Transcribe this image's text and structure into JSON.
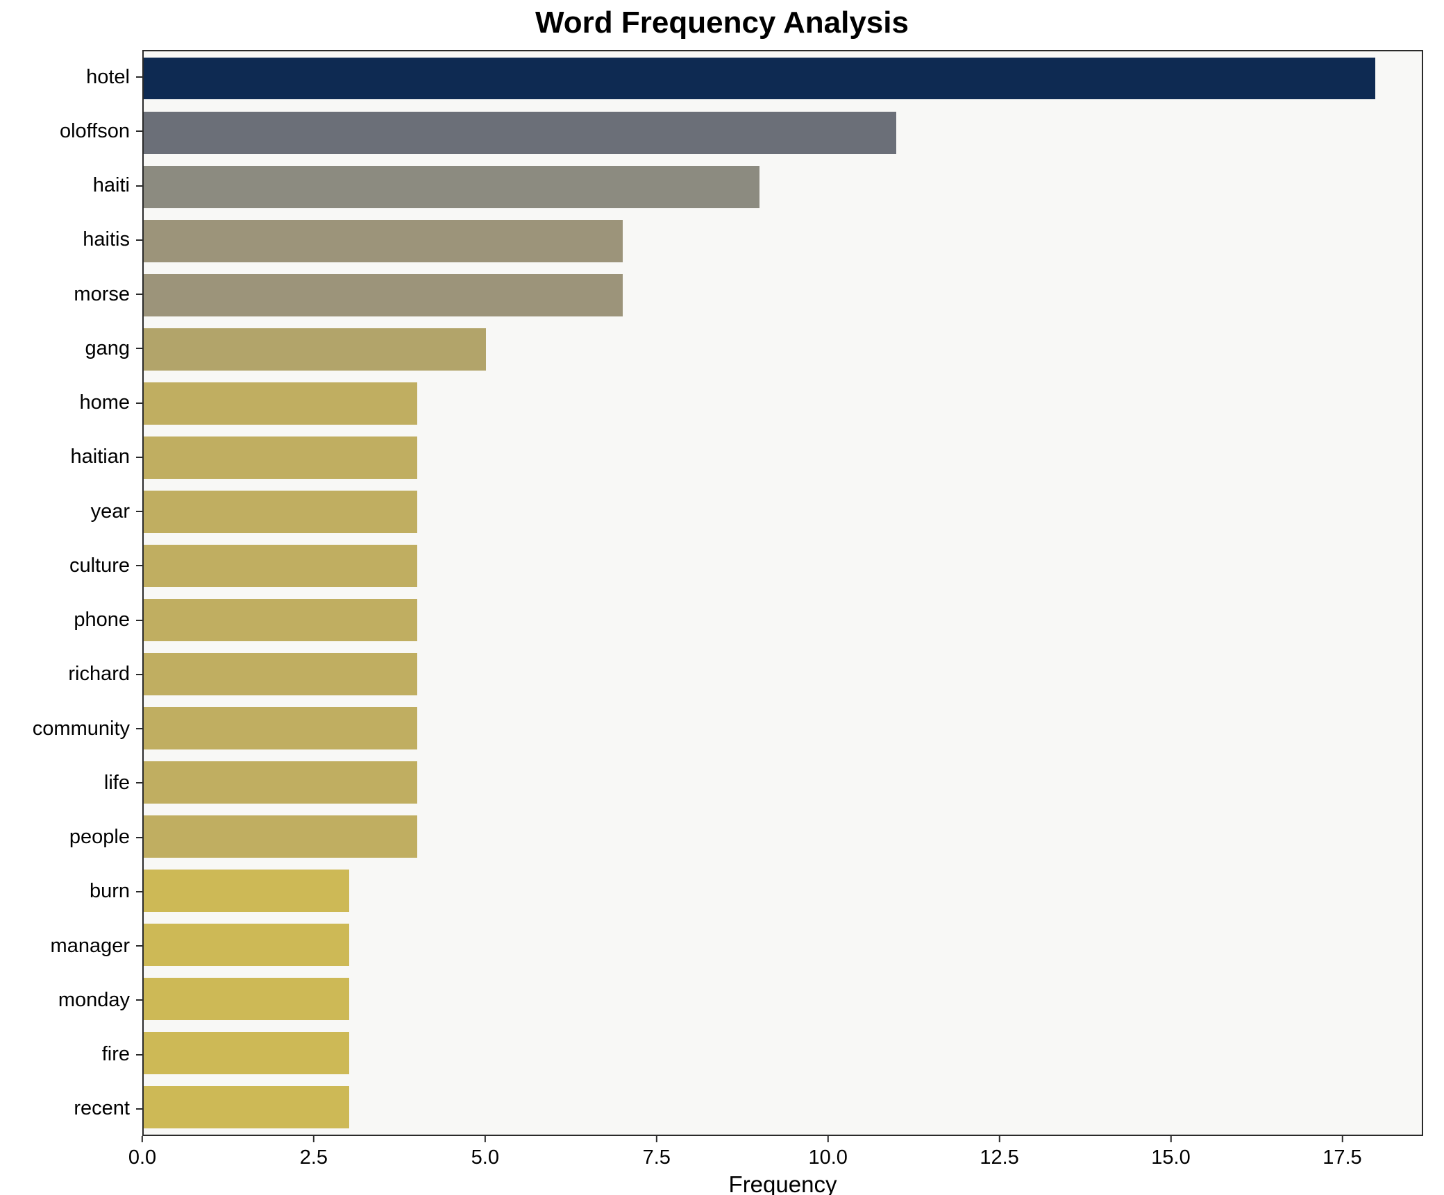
{
  "chart_data": {
    "type": "bar",
    "orientation": "horizontal",
    "title": "Word Frequency Analysis",
    "xlabel": "Frequency",
    "ylabel": "",
    "categories": [
      "hotel",
      "oloffson",
      "haiti",
      "haitis",
      "morse",
      "gang",
      "home",
      "haitian",
      "year",
      "culture",
      "phone",
      "richard",
      "community",
      "life",
      "people",
      "burn",
      "manager",
      "monday",
      "fire",
      "recent"
    ],
    "values": [
      18,
      11,
      9,
      7,
      7,
      5,
      4,
      4,
      4,
      4,
      4,
      4,
      4,
      4,
      4,
      3,
      3,
      3,
      3,
      3
    ],
    "bar_colors": [
      "#0e2a52",
      "#6b6f78",
      "#8c8b80",
      "#9c947a",
      "#9c947a",
      "#b2a46a",
      "#c0ae61",
      "#c0ae61",
      "#c0ae61",
      "#c0ae61",
      "#c0ae61",
      "#c0ae61",
      "#c0ae61",
      "#c0ae61",
      "#c0ae61",
      "#cdb956",
      "#cdb956",
      "#cdb956",
      "#cdb956",
      "#cdb956"
    ],
    "xlim": [
      0,
      18.68
    ],
    "xticks": [
      0.0,
      2.5,
      5.0,
      7.5,
      10.0,
      12.5,
      15.0,
      17.5
    ],
    "xtick_labels": [
      "0.0",
      "2.5",
      "5.0",
      "7.5",
      "10.0",
      "12.5",
      "15.0",
      "17.5"
    ],
    "grid": false,
    "legend": "none",
    "plot_background": "#f8f8f6",
    "axis_color": "#2a2a2a"
  }
}
